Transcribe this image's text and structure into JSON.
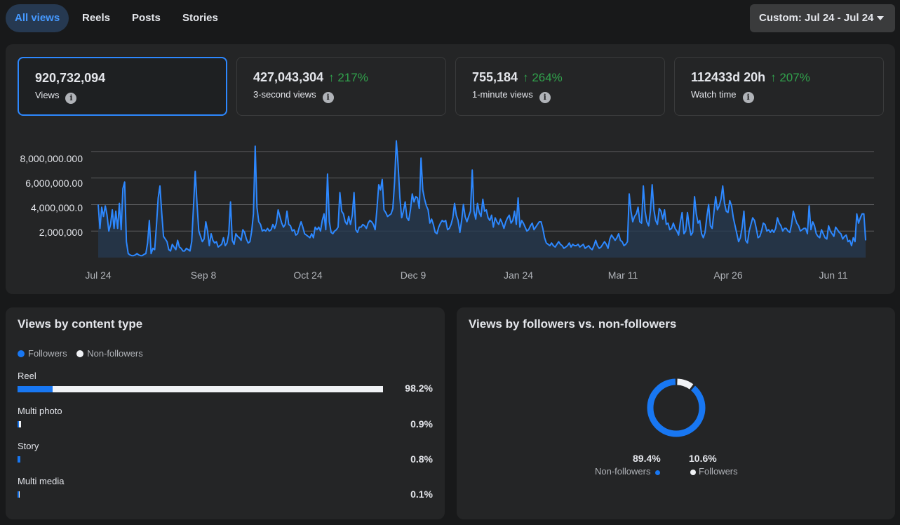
{
  "tabs": [
    {
      "label": "All views",
      "active": true
    },
    {
      "label": "Reels"
    },
    {
      "label": "Posts"
    },
    {
      "label": "Stories"
    }
  ],
  "date_range": {
    "label": "Custom: Jul 24 - Jul 24"
  },
  "metrics": [
    {
      "value": "920,732,094",
      "label": "Views",
      "change": ""
    },
    {
      "value": "427,043,304",
      "label": "3-second views",
      "change": "↑ 217%"
    },
    {
      "value": "755,184",
      "label": "1-minute views",
      "change": "↑ 264%"
    },
    {
      "value": "112433d 20h",
      "label": "Watch time",
      "change": "↑ 207%"
    }
  ],
  "colors": {
    "accent": "#2d88ff",
    "positive": "#31a24c",
    "line": "#2d88ff",
    "background": "#18191a",
    "panel": "#242526"
  },
  "chart_data": {
    "type": "area",
    "series": [
      {
        "values": [
          4000000,
          2200000,
          3800000,
          3100000,
          3900000,
          3200000,
          2000000,
          2500000,
          3600000,
          2200000,
          3500000,
          2200000,
          4100000,
          2100000,
          5200000,
          5700000,
          1200000,
          300000,
          200000,
          150000,
          150000,
          200000,
          300000,
          200000,
          150000,
          150000,
          250000,
          300000,
          1100000,
          2800000,
          300000,
          700000,
          600000,
          2400000,
          4500000,
          5400000,
          3400000,
          1600000,
          1400000,
          1200000,
          600000,
          500000,
          1000000,
          800000,
          600000,
          1300000,
          800000,
          700000,
          500000,
          500000,
          700000,
          600000,
          500000,
          1200000,
          3800000,
          6500000,
          4100000,
          2000000,
          1600000,
          1200000,
          1400000,
          2700000,
          2000000,
          900000,
          1800000,
          1300000,
          1100000,
          1200000,
          800000,
          900000,
          1000000,
          1500000,
          900000,
          1100000,
          1800000,
          4200000,
          1300000,
          1000000,
          1800000,
          1600000,
          1500000,
          1300000,
          2100000,
          1900000,
          1400000,
          1100000,
          1200000,
          2000000,
          3300000,
          8400000,
          3800000,
          2700000,
          2500000,
          2000000,
          2100000,
          2000000,
          2200000,
          2000000,
          2100000,
          2500000,
          2200000,
          2600000,
          3600000,
          3100000,
          2600000,
          2300000,
          2500000,
          3500000,
          2500000,
          2400000,
          2000000,
          2100000,
          1700000,
          1800000,
          2300000,
          2700000,
          2300000,
          1800000,
          1700000,
          1600000,
          1500000,
          1800000,
          1500000,
          2300000,
          2100000,
          2300000,
          2000000,
          2800000,
          3300000,
          2100000,
          6300000,
          2700000,
          1900000,
          1800000,
          2000000,
          2100000,
          2300000,
          4900000,
          3500000,
          3300000,
          2700000,
          2500000,
          3100000,
          2500000,
          3200000,
          4900000,
          2100000,
          1900000,
          2300000,
          2300000,
          2500000,
          2400000,
          2200000,
          2600000,
          2800000,
          2700000,
          2500000,
          2100000,
          3700000,
          5500000,
          5100000,
          5900000,
          3600000,
          3400000,
          3100000,
          3200000,
          3300000,
          3700000,
          5700000,
          8800000,
          7000000,
          4500000,
          3000000,
          3500000,
          4200000,
          3000000,
          2800000,
          3600000,
          4800000,
          4200000,
          4600000,
          4500000,
          3700000,
          7500000,
          5100000,
          4400000,
          3900000,
          3600000,
          2600000,
          2900000,
          2500000,
          1900000,
          1800000,
          2300000,
          2600000,
          2800000,
          2700000,
          2800000,
          2100000,
          2200000,
          2500000,
          3000000,
          4100000,
          3200000,
          2800000,
          1900000,
          2800000,
          4000000,
          3100000,
          2700000,
          3100000,
          3500000,
          6600000,
          3500000,
          2900000,
          4100000,
          3400000,
          3100000,
          4400000,
          3500000,
          3600000,
          3000000,
          2800000,
          3200000,
          2300000,
          3000000,
          2700000,
          2500000,
          2900000,
          2600000,
          2200000,
          2700000,
          3000000,
          3200000,
          2600000,
          2800000,
          3500000,
          2500000,
          4500000,
          2300000,
          2800000,
          2600000,
          2300000,
          2000000,
          2100000,
          2400000,
          2600000,
          2100000,
          2300000,
          2500000,
          2700000,
          2700000,
          2200000,
          1500000,
          1100000,
          1000000,
          900000,
          1100000,
          900000,
          800000,
          1000000,
          1200000,
          1000000,
          900000,
          700000,
          800000,
          900000,
          1100000,
          800000,
          1000000,
          900000,
          900000,
          1000000,
          800000,
          900000,
          1000000,
          700000,
          800000,
          900000,
          700000,
          600000,
          900000,
          1300000,
          900000,
          700000,
          800000,
          1000000,
          1200000,
          1000000,
          700000,
          1400000,
          1700000,
          1500000,
          1300000,
          1500000,
          1800000,
          1300000,
          1200000,
          900000,
          1000000,
          1200000,
          4800000,
          3500000,
          2700000,
          3100000,
          3300000,
          3800000,
          2700000,
          2600000,
          5400000,
          3500000,
          2700000,
          2400000,
          3500000,
          5500000,
          3600000,
          2800000,
          2500000,
          3700000,
          3500000,
          2900000,
          3600000,
          2500000,
          2600000,
          2100000,
          2200000,
          2600000,
          2200000,
          2000000,
          1700000,
          2700000,
          3400000,
          1800000,
          2000000,
          3400000,
          2400000,
          1700000,
          1900000,
          4600000,
          3300000,
          2600000,
          2800000,
          1800000,
          1500000,
          1900000,
          3100000,
          4000000,
          2400000,
          2200000,
          3400000,
          4600000,
          3600000,
          3900000,
          4400000,
          5400000,
          4100000,
          3500000,
          3400000,
          4300000,
          3900000,
          3000000,
          2400000,
          1800000,
          1200000,
          1500000,
          2300000,
          3500000,
          1300000,
          1100000,
          2000000,
          2500000,
          3000000,
          2800000,
          2200000,
          1500000,
          1600000,
          2000000,
          2600000,
          2500000,
          2000000,
          2100000,
          1900000,
          2100000,
          1900000,
          2200000,
          3000000,
          2600000,
          2400000,
          2000000,
          2200000,
          2200000,
          2000000,
          1900000,
          2500000,
          3500000,
          3000000,
          2600000,
          2400000,
          2000000,
          2100000,
          2200000,
          2200000,
          1800000,
          3900000,
          2100000,
          2700000,
          2400000,
          1800000,
          1600000,
          1500000,
          2100000,
          1800000,
          1500000,
          1400000,
          2400000,
          2000000,
          1800000,
          1600000,
          2300000,
          2100000,
          1900000,
          1800000,
          1400000,
          1600000,
          1700000,
          1200000,
          1300000,
          900000,
          1500000,
          1200000,
          3300000,
          2600000,
          3000000,
          3300000,
          3300000,
          1300000
        ]
      }
    ],
    "x_tick_labels": [
      "Jul 24",
      "Sep 8",
      "Oct 24",
      "Dec 9",
      "Jan 24",
      "Mar 11",
      "Apr 26",
      "Jun 11"
    ],
    "y_tick_labels": [
      "8,000,000.000",
      "6,000,000.00",
      "4,000,000.0",
      "2,000,000"
    ],
    "y_ticks": [
      8000000,
      6000000,
      4000000,
      2000000
    ],
    "ylim": [
      0,
      9000000
    ],
    "grid": true
  },
  "content_type": {
    "title": "Views by content type",
    "legend": [
      "Followers",
      "Non-followers"
    ],
    "rows": [
      {
        "label": "Reel",
        "pct": "98.2%",
        "total": 98.2,
        "followers": 9.5
      },
      {
        "label": "Multi photo",
        "pct": "0.9%",
        "total": 0.9,
        "followers": 0.3
      },
      {
        "label": "Story",
        "pct": "0.8%",
        "total": 0.8,
        "followers": 0.8
      },
      {
        "label": "Multi media",
        "pct": "0.1%",
        "total": 0.1,
        "followers": 0.1
      }
    ]
  },
  "followers_split": {
    "title": "Views by followers vs. non-followers",
    "non_followers": {
      "pct": "89.4%",
      "label": "Non-followers",
      "value": 89.4,
      "color": "#1877f2"
    },
    "followers": {
      "pct": "10.6%",
      "label": "Followers",
      "value": 10.6,
      "color": "#f0f2f5"
    }
  }
}
